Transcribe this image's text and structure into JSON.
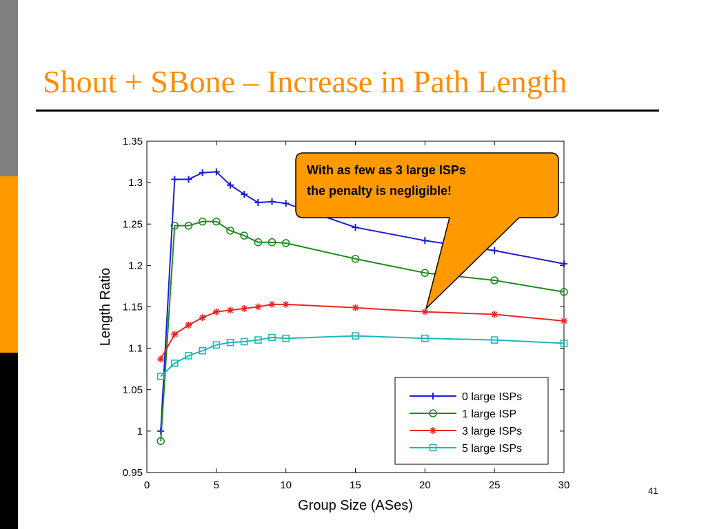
{
  "slide": {
    "title": "Shout + SBone – Increase in Path Length",
    "page_number": "41",
    "colors": {
      "title": "#ff8c00",
      "callout_fill": "#ff9900",
      "side_gray": "#808080",
      "side_orange": "#ff9900",
      "side_black": "#000000"
    }
  },
  "callout": {
    "line1": "With as few as 3 large ISPs",
    "line2": "the penalty is negligible!"
  },
  "chart_data": {
    "type": "line",
    "title": "",
    "xlabel": "Group Size (ASes)",
    "ylabel": "Length Ratio",
    "xlim": [
      0,
      30
    ],
    "ylim": [
      0.95,
      1.35
    ],
    "xticks": [
      "0",
      "5",
      "10",
      "15",
      "20",
      "25",
      "30"
    ],
    "yticks": [
      "0.95",
      "1",
      "1.05",
      "1.1",
      "1.15",
      "1.2",
      "1.25",
      "1.3",
      "1.35"
    ],
    "grid": false,
    "legend_position": "bottom-right",
    "x": [
      1,
      2,
      3,
      4,
      5,
      6,
      7,
      8,
      9,
      10,
      15,
      20,
      25,
      30
    ],
    "series": [
      {
        "name": "0 large ISPs",
        "color": "#1c1cd6",
        "marker": "plus",
        "values": [
          1.0,
          1.304,
          1.304,
          1.312,
          1.313,
          1.297,
          1.286,
          1.276,
          1.277,
          1.275,
          1.246,
          1.23,
          1.218,
          1.202
        ]
      },
      {
        "name": "1 large ISP",
        "color": "#1e8a1e",
        "marker": "circle",
        "values": [
          0.988,
          1.248,
          1.248,
          1.253,
          1.253,
          1.242,
          1.236,
          1.228,
          1.228,
          1.227,
          1.208,
          1.191,
          1.182,
          1.168
        ]
      },
      {
        "name": "3 large ISPs",
        "color": "#ee2222",
        "marker": "star",
        "values": [
          1.087,
          1.117,
          1.128,
          1.137,
          1.144,
          1.146,
          1.148,
          1.15,
          1.153,
          1.153,
          1.149,
          1.144,
          1.141,
          1.133
        ]
      },
      {
        "name": "5 large ISPs",
        "color": "#1ab8b8",
        "marker": "square",
        "values": [
          1.066,
          1.082,
          1.091,
          1.097,
          1.104,
          1.107,
          1.108,
          1.11,
          1.113,
          1.112,
          1.115,
          1.112,
          1.11,
          1.106
        ]
      }
    ]
  }
}
